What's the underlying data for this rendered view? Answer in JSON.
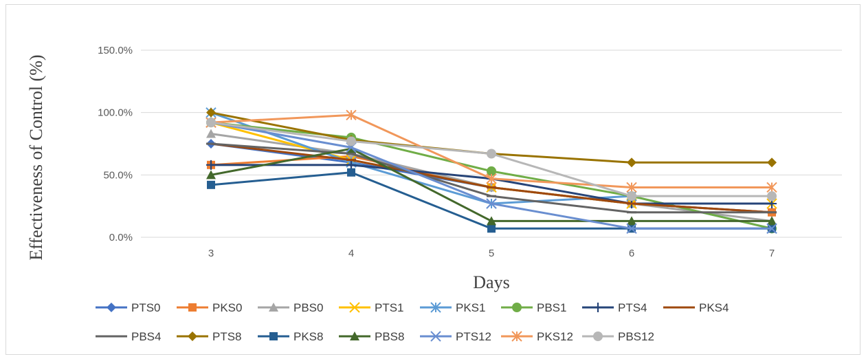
{
  "chart_data": {
    "type": "line",
    "title": "",
    "xlabel": "Days",
    "ylabel": "Effectiveness of Control (%)",
    "x": [
      3,
      4,
      5,
      6,
      7
    ],
    "ylim": [
      0,
      150
    ],
    "yticks": [
      0,
      50,
      100,
      150
    ],
    "ytick_labels": [
      "0.0%",
      "50.0%",
      "100.0%",
      "150.0%"
    ],
    "grid": "horizontal",
    "legend_position": "bottom",
    "series": [
      {
        "name": "PTS0",
        "color": "#4472C4",
        "marker": "diamond",
        "values": [
          75,
          60,
          40,
          27,
          20
        ]
      },
      {
        "name": "PKS0",
        "color": "#ED7D31",
        "marker": "square",
        "values": [
          58,
          65,
          40,
          27,
          20
        ]
      },
      {
        "name": "PBS0",
        "color": "#A5A5A5",
        "marker": "triangle",
        "values": [
          83,
          67,
          40,
          27,
          13
        ]
      },
      {
        "name": "PTS1",
        "color": "#FFC000",
        "marker": "x",
        "values": [
          92,
          62,
          40,
          27,
          27
        ]
      },
      {
        "name": "PKS1",
        "color": "#5B9BD5",
        "marker": "star",
        "values": [
          100,
          60,
          27,
          33,
          7
        ]
      },
      {
        "name": "PBS1",
        "color": "#70AD47",
        "marker": "circle",
        "values": [
          92,
          80,
          53,
          33,
          7
        ]
      },
      {
        "name": "PTS4",
        "color": "#264478",
        "marker": "plus",
        "values": [
          58,
          58,
          47,
          27,
          27
        ]
      },
      {
        "name": "PKS4",
        "color": "#9E480E",
        "marker": "dash",
        "values": [
          75,
          62,
          40,
          27,
          20
        ]
      },
      {
        "name": "PBS4",
        "color": "#636363",
        "marker": "dash",
        "values": [
          75,
          67,
          33,
          20,
          20
        ]
      },
      {
        "name": "PTS8",
        "color": "#997300",
        "marker": "diamond",
        "values": [
          100,
          78,
          67,
          60,
          60
        ]
      },
      {
        "name": "PKS8",
        "color": "#255E91",
        "marker": "square",
        "values": [
          42,
          52,
          7,
          7,
          7
        ]
      },
      {
        "name": "PBS8",
        "color": "#43682B",
        "marker": "triangle",
        "values": [
          50,
          71,
          13,
          13,
          13
        ]
      },
      {
        "name": "PTS12",
        "color": "#698ED0",
        "marker": "x",
        "values": [
          92,
          72,
          27,
          7,
          7
        ]
      },
      {
        "name": "PKS12",
        "color": "#F1975A",
        "marker": "star",
        "values": [
          92,
          98,
          47,
          40,
          40
        ]
      },
      {
        "name": "PBS12",
        "color": "#B7B7B7",
        "marker": "circle",
        "values": [
          92,
          77,
          67,
          33,
          33
        ]
      }
    ]
  }
}
